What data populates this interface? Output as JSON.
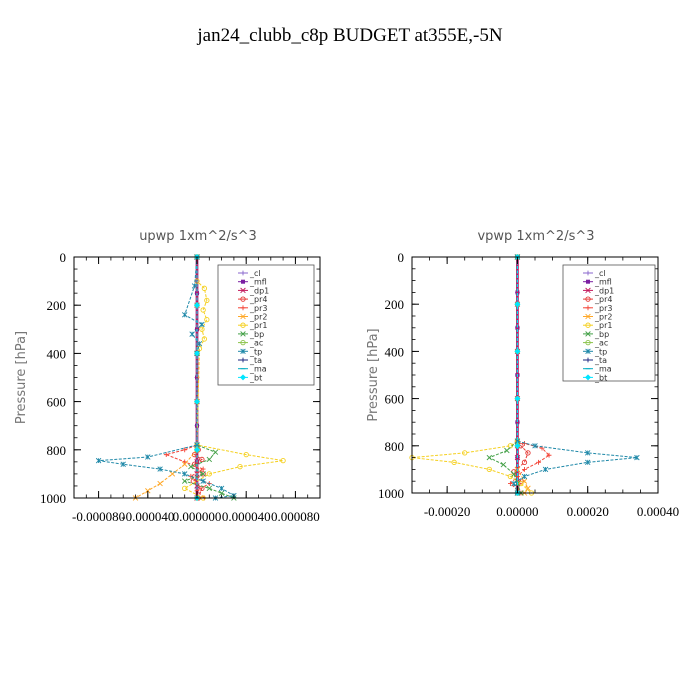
{
  "figure": {
    "title": "jan24_clubb_c8p  BUDGET at355E,-5N"
  },
  "chart_data": [
    {
      "type": "line",
      "title": "upwp   1xm^2/s^3",
      "xlabel": "",
      "ylabel": "Pressure  [hPa]",
      "xlim": [
        -0.0001,
        0.0001
      ],
      "ylim": [
        1000,
        0
      ],
      "xticks": [
        -8e-05,
        -4e-05,
        0.0,
        4e-05,
        8e-05
      ],
      "xtick_labels": [
        "-0.000080",
        "-0.000040",
        "0.000000",
        "0.000040",
        "0.000080"
      ],
      "yticks": [
        0,
        200,
        400,
        600,
        800,
        1000
      ],
      "ytick_labels": [
        "0",
        "200",
        "400",
        "600",
        "800",
        "1000"
      ],
      "legend_position": "top-right",
      "series": [
        {
          "name": "_cl",
          "color": "#8866cc",
          "marker": "+",
          "x": [
            0,
            0,
            0,
            0,
            0,
            0,
            0
          ],
          "y": [
            0,
            150,
            300,
            500,
            700,
            850,
            1000
          ]
        },
        {
          "name": "_mfl",
          "color": "#7b1fa2",
          "marker": "s",
          "x": [
            0,
            0,
            0,
            0,
            0,
            0,
            0
          ],
          "y": [
            0,
            150,
            300,
            500,
            700,
            850,
            1000
          ]
        },
        {
          "name": "_dp1",
          "color": "#c2185b",
          "marker": "x",
          "x": [
            0,
            0,
            0,
            0,
            0,
            0,
            0,
            0,
            0
          ],
          "y": [
            0,
            200,
            400,
            600,
            790,
            850,
            900,
            950,
            1000
          ]
        },
        {
          "name": "_pr4",
          "color": "#e53935",
          "marker": "o",
          "x": [
            0,
            0,
            0,
            1e-06,
            -2e-06,
            4e-06,
            -2e-06,
            5e-06,
            -3e-06,
            4e-06,
            1e-06
          ],
          "y": [
            0,
            400,
            780,
            800,
            820,
            840,
            860,
            900,
            930,
            960,
            1000
          ]
        },
        {
          "name": "_pr3",
          "color": "#f44336",
          "marker": "+",
          "x": [
            0,
            0,
            0,
            -1e-05,
            -2.5e-05,
            -1e-05,
            5e-06,
            -5e-06,
            1e-05,
            0,
            6e-06
          ],
          "y": [
            0,
            400,
            780,
            800,
            820,
            850,
            880,
            910,
            940,
            970,
            1000
          ]
        },
        {
          "name": "_pr2",
          "color": "#ffa726",
          "marker": "x",
          "x": [
            0,
            0,
            0,
            -1e-05,
            -2e-05,
            -3e-05,
            -4e-05,
            -5e-05
          ],
          "y": [
            0,
            400,
            800,
            860,
            900,
            940,
            970,
            1000
          ]
        },
        {
          "name": "_pr1",
          "color": "#f5d020",
          "marker": "o",
          "x": [
            0,
            0,
            6e-06,
            8e-06,
            5e-06,
            8e-06,
            4e-06,
            6e-06,
            2e-06,
            0,
            4e-05,
            7e-05,
            3.5e-05,
            1e-05,
            -1e-05,
            5e-06
          ],
          "y": [
            0,
            100,
            130,
            180,
            220,
            260,
            300,
            340,
            380,
            780,
            820,
            845,
            870,
            900,
            960,
            1000
          ]
        },
        {
          "name": "_bp",
          "color": "#43a047",
          "marker": "x",
          "x": [
            0,
            0,
            0,
            1.5e-05,
            1e-05,
            -5e-06,
            5e-06,
            -1e-05,
            1e-05,
            2e-05,
            3e-05
          ],
          "y": [
            0,
            400,
            780,
            810,
            840,
            870,
            900,
            930,
            960,
            980,
            1000
          ]
        },
        {
          "name": "_ac",
          "color": "#8bc34a",
          "marker": "o",
          "x": [
            0,
            0,
            0,
            0,
            0,
            0
          ],
          "y": [
            0,
            200,
            400,
            600,
            800,
            1000
          ]
        },
        {
          "name": "_tp",
          "color": "#1e88a8",
          "marker": "*",
          "x": [
            0,
            -2e-06,
            -1e-05,
            4e-06,
            -4e-06,
            2e-06,
            0,
            0,
            -4e-05,
            -8e-05,
            -6e-05,
            -3e-05,
            -1e-05,
            5e-06,
            2e-05,
            3e-05,
            1.5e-05
          ],
          "y": [
            0,
            120,
            240,
            280,
            320,
            360,
            400,
            780,
            830,
            845,
            860,
            880,
            900,
            930,
            960,
            990,
            1000
          ]
        },
        {
          "name": "_ta",
          "color": "#1a237e",
          "marker": "+",
          "x": [
            0,
            0,
            0,
            0,
            0,
            0
          ],
          "y": [
            0,
            200,
            400,
            600,
            800,
            1000
          ]
        },
        {
          "name": "_ma",
          "color": "#00acc1",
          "marker": "-",
          "x": [
            0,
            0,
            0,
            0,
            0,
            0
          ],
          "y": [
            0,
            200,
            400,
            600,
            800,
            1000
          ]
        },
        {
          "name": "_bt",
          "color": "#00e5ff",
          "marker": "d",
          "x": [
            0,
            0,
            0,
            0,
            0,
            0
          ],
          "y": [
            0,
            200,
            400,
            600,
            800,
            1000
          ]
        }
      ]
    },
    {
      "type": "line",
      "title": "vpwp   1xm^2/s^3",
      "xlabel": "",
      "ylabel": "Pressure  [hPa]",
      "xlim": [
        -0.0003,
        0.0004
      ],
      "ylim": [
        1000,
        0
      ],
      "xticks": [
        -0.0002,
        0.0,
        0.0002,
        0.0004
      ],
      "xtick_labels": [
        "-0.00020",
        "0.00000",
        "0.00020",
        "0.00040"
      ],
      "yticks": [
        0,
        200,
        400,
        600,
        800,
        1000
      ],
      "ytick_labels": [
        "0",
        "200",
        "400",
        "600",
        "800",
        "1000"
      ],
      "legend_position": "top-right",
      "series": [
        {
          "name": "_cl",
          "color": "#8866cc",
          "marker": "+",
          "x": [
            0,
            0,
            0,
            0,
            0,
            0,
            0
          ],
          "y": [
            0,
            150,
            300,
            500,
            700,
            850,
            1000
          ]
        },
        {
          "name": "_mfl",
          "color": "#7b1fa2",
          "marker": "s",
          "x": [
            0,
            0,
            0,
            0,
            0,
            0,
            0
          ],
          "y": [
            0,
            150,
            300,
            500,
            700,
            850,
            1000
          ]
        },
        {
          "name": "_dp1",
          "color": "#c2185b",
          "marker": "x",
          "x": [
            0,
            0,
            0,
            0,
            0,
            0,
            0,
            0
          ],
          "y": [
            0,
            200,
            400,
            600,
            800,
            850,
            900,
            1000
          ]
        },
        {
          "name": "_pr4",
          "color": "#e53935",
          "marker": "o",
          "x": [
            0,
            0,
            1e-05,
            3e-05,
            2e-05,
            -1e-05,
            1e-05,
            0
          ],
          "y": [
            0,
            780,
            800,
            830,
            870,
            910,
            950,
            1000
          ]
        },
        {
          "name": "_pr3",
          "color": "#f44336",
          "marker": "+",
          "x": [
            0,
            0,
            2e-05,
            7e-05,
            9e-05,
            6e-05,
            2e-05,
            0,
            -2e-05,
            1e-05
          ],
          "y": [
            0,
            780,
            790,
            810,
            840,
            870,
            900,
            930,
            960,
            1000
          ]
        },
        {
          "name": "_pr2",
          "color": "#ffa726",
          "marker": "x",
          "x": [
            0,
            0,
            0,
            2e-05,
            3e-05,
            2e-05
          ],
          "y": [
            0,
            780,
            900,
            950,
            980,
            1000
          ]
        },
        {
          "name": "_pr1",
          "color": "#f5d020",
          "marker": "o",
          "x": [
            0,
            0,
            -2e-05,
            -0.00015,
            -0.0003,
            -0.00018,
            -8e-05,
            -2e-05,
            1e-05,
            4e-05
          ],
          "y": [
            0,
            780,
            800,
            830,
            850,
            870,
            900,
            930,
            960,
            1000
          ]
        },
        {
          "name": "_bp",
          "color": "#43a047",
          "marker": "x",
          "x": [
            0,
            0,
            -3e-05,
            -8e-05,
            -4e-05,
            -1e-05,
            0,
            1e-05
          ],
          "y": [
            0,
            780,
            820,
            850,
            880,
            920,
            960,
            1000
          ]
        },
        {
          "name": "_ac",
          "color": "#8bc34a",
          "marker": "o",
          "x": [
            0,
            0,
            0,
            0,
            0,
            0
          ],
          "y": [
            0,
            200,
            400,
            600,
            800,
            1000
          ]
        },
        {
          "name": "_tp",
          "color": "#1e88a8",
          "marker": "*",
          "x": [
            0,
            0,
            5e-05,
            0.0002,
            0.00034,
            0.0002,
            8e-05,
            2e-05,
            -1e-05,
            0
          ],
          "y": [
            0,
            780,
            800,
            830,
            850,
            870,
            900,
            930,
            960,
            1000
          ]
        },
        {
          "name": "_ta",
          "color": "#1a237e",
          "marker": "+",
          "x": [
            0,
            0,
            0,
            0,
            0,
            0
          ],
          "y": [
            0,
            200,
            400,
            600,
            800,
            1000
          ]
        },
        {
          "name": "_ma",
          "color": "#00acc1",
          "marker": "-",
          "x": [
            0,
            0,
            0,
            0,
            0,
            0
          ],
          "y": [
            0,
            200,
            400,
            600,
            800,
            1000
          ]
        },
        {
          "name": "_bt",
          "color": "#00e5ff",
          "marker": "d",
          "x": [
            0,
            0,
            0,
            0,
            0,
            0
          ],
          "y": [
            0,
            200,
            400,
            600,
            800,
            1000
          ]
        }
      ]
    }
  ]
}
